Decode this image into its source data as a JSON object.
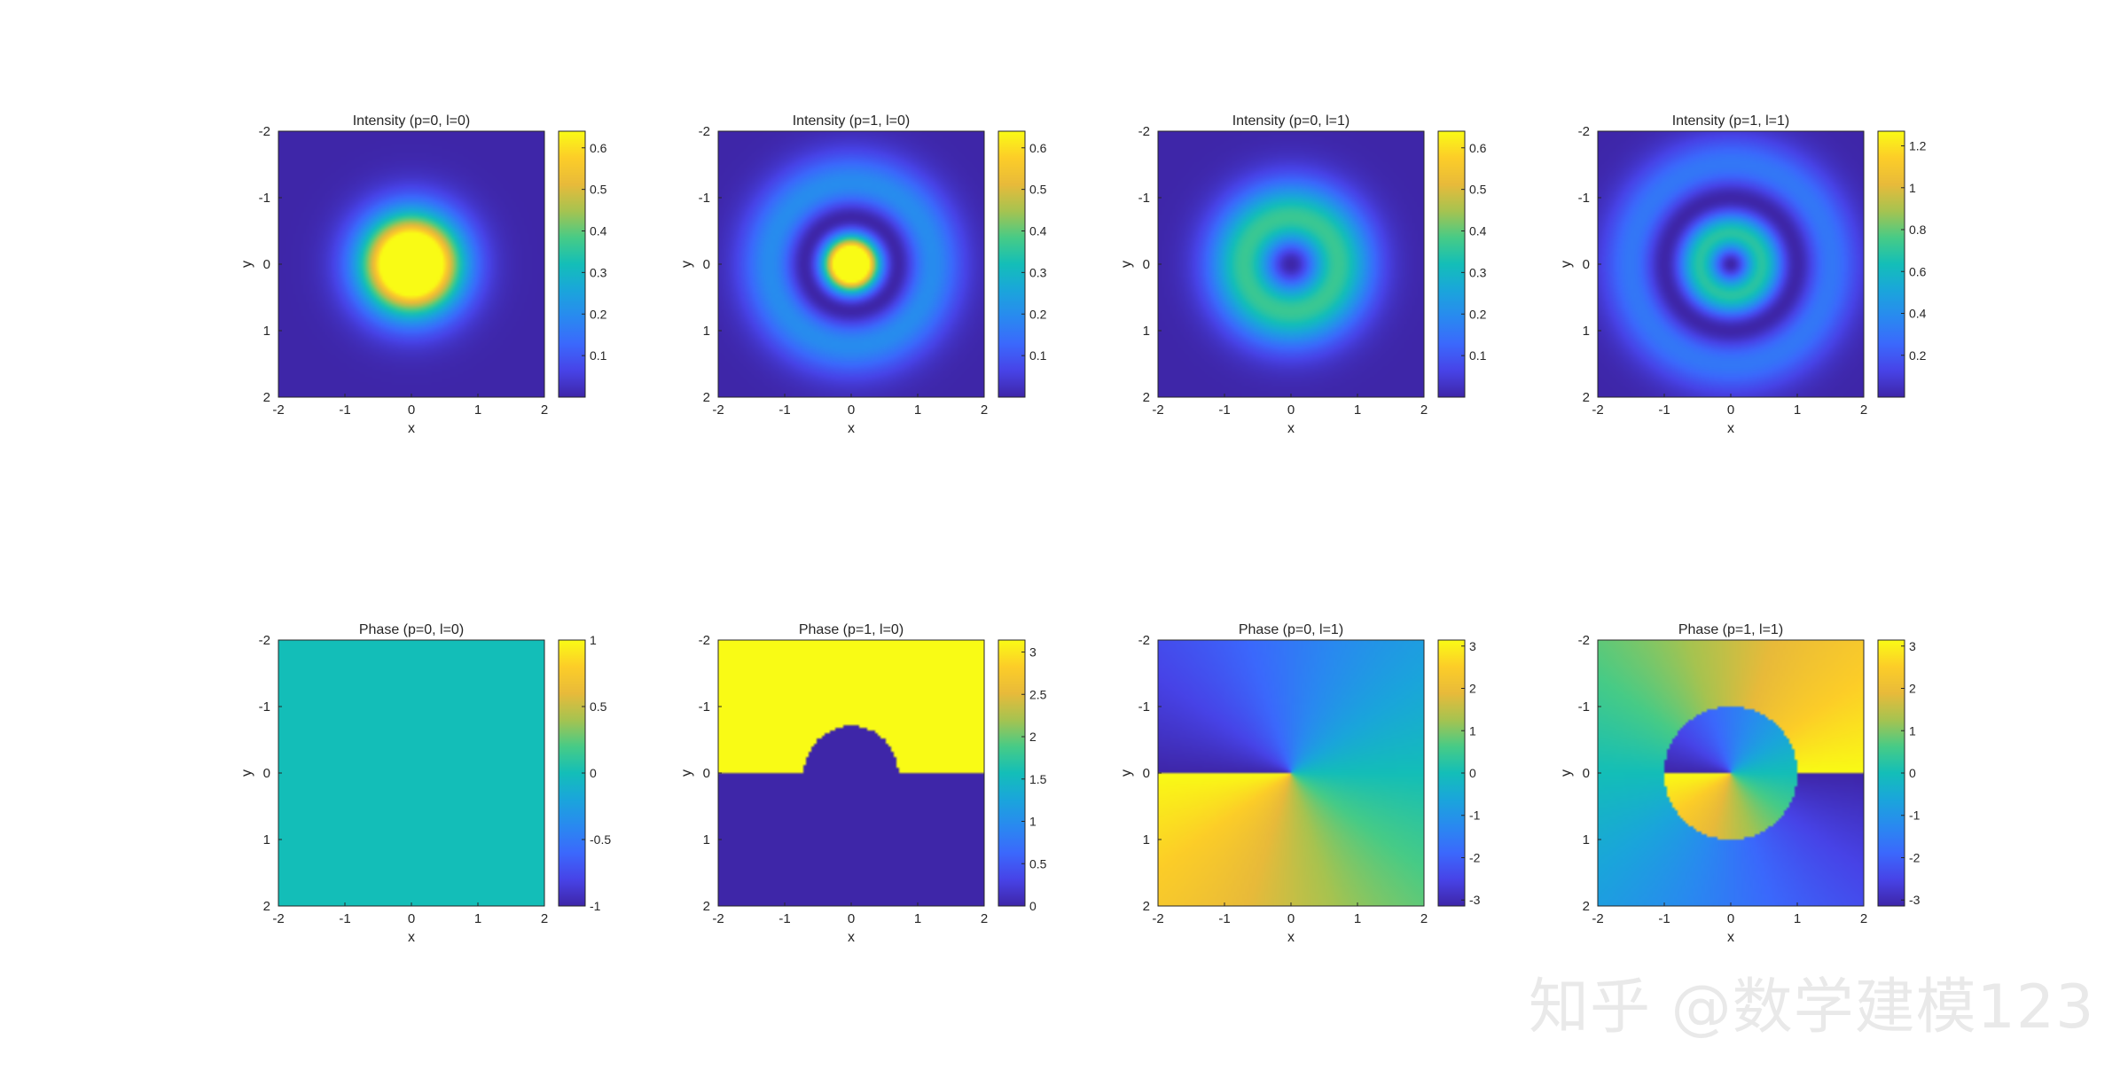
{
  "watermark": "知乎 @数学建模123",
  "colors": {
    "parula_low": "#3e26a8",
    "parula_mid": "#13beb8",
    "parula_high": "#f9fb15",
    "axis": "#262626"
  },
  "chart_data": [
    {
      "type": "heatmap",
      "title": "Intensity (p=0, l=0)",
      "xlabel": "x",
      "ylabel": "y",
      "xlim": [
        -2,
        2
      ],
      "ylim": [
        -2,
        2
      ],
      "y_direction": "reverse",
      "xticks": [
        "-2",
        "-1",
        "0",
        "1",
        "2"
      ],
      "yticks": [
        "-2",
        "-1",
        "0",
        "1",
        "2"
      ],
      "field": "intensity",
      "p": 0,
      "l": 0,
      "clim": [
        0,
        0.64
      ],
      "colorbar_ticks": [
        "0.1",
        "0.2",
        "0.3",
        "0.4",
        "0.5",
        "0.6"
      ]
    },
    {
      "type": "heatmap",
      "title": "Intensity (p=1, l=0)",
      "xlabel": "x",
      "ylabel": "y",
      "xlim": [
        -2,
        2
      ],
      "ylim": [
        -2,
        2
      ],
      "y_direction": "reverse",
      "xticks": [
        "-2",
        "-1",
        "0",
        "1",
        "2"
      ],
      "yticks": [
        "-2",
        "-1",
        "0",
        "1",
        "2"
      ],
      "field": "intensity",
      "p": 1,
      "l": 0,
      "clim": [
        0,
        0.64
      ],
      "colorbar_ticks": [
        "0.1",
        "0.2",
        "0.3",
        "0.4",
        "0.5",
        "0.6"
      ]
    },
    {
      "type": "heatmap",
      "title": "Intensity (p=0, l=1)",
      "xlabel": "x",
      "ylabel": "y",
      "xlim": [
        -2,
        2
      ],
      "ylim": [
        -2,
        2
      ],
      "y_direction": "reverse",
      "xticks": [
        "-2",
        "-1",
        "0",
        "1",
        "2"
      ],
      "yticks": [
        "-2",
        "-1",
        "0",
        "1",
        "2"
      ],
      "field": "intensity",
      "p": 0,
      "l": 1,
      "clim": [
        0,
        0.64
      ],
      "colorbar_ticks": [
        "0.1",
        "0.2",
        "0.3",
        "0.4",
        "0.5",
        "0.6"
      ]
    },
    {
      "type": "heatmap",
      "title": "Intensity (p=1, l=1)",
      "xlabel": "x",
      "ylabel": "y",
      "xlim": [
        -2,
        2
      ],
      "ylim": [
        -2,
        2
      ],
      "y_direction": "reverse",
      "xticks": [
        "-2",
        "-1",
        "0",
        "1",
        "2"
      ],
      "yticks": [
        "-2",
        "-1",
        "0",
        "1",
        "2"
      ],
      "field": "intensity",
      "p": 1,
      "l": 1,
      "clim": [
        0,
        1.27
      ],
      "colorbar_ticks": [
        "0.2",
        "0.4",
        "0.6",
        "0.8",
        "1",
        "1.2"
      ]
    },
    {
      "type": "heatmap",
      "title": "Phase (p=0, l=0)",
      "xlabel": "x",
      "ylabel": "y",
      "xlim": [
        -2,
        2
      ],
      "ylim": [
        -2,
        2
      ],
      "y_direction": "reverse",
      "xticks": [
        "-2",
        "-1",
        "0",
        "1",
        "2"
      ],
      "yticks": [
        "-2",
        "-1",
        "0",
        "1",
        "2"
      ],
      "field": "phase",
      "p": 0,
      "l": 0,
      "clim": [
        -1,
        1
      ],
      "colorbar_ticks": [
        "-1",
        "-0.5",
        "0",
        "0.5",
        "1"
      ]
    },
    {
      "type": "heatmap",
      "title": "Phase (p=1, l=0)",
      "xlabel": "x",
      "ylabel": "y",
      "xlim": [
        -2,
        2
      ],
      "ylim": [
        -2,
        2
      ],
      "y_direction": "reverse",
      "xticks": [
        "-2",
        "-1",
        "0",
        "1",
        "2"
      ],
      "yticks": [
        "-2",
        "-1",
        "0",
        "1",
        "2"
      ],
      "field": "phase",
      "p": 1,
      "l": 0,
      "clim": [
        0,
        3.1416
      ],
      "colorbar_ticks": [
        "0",
        "0.5",
        "1",
        "1.5",
        "2",
        "2.5",
        "3"
      ]
    },
    {
      "type": "heatmap",
      "title": "Phase (p=0, l=1)",
      "xlabel": "x",
      "ylabel": "y",
      "xlim": [
        -2,
        2
      ],
      "ylim": [
        -2,
        2
      ],
      "y_direction": "reverse",
      "xticks": [
        "-2",
        "-1",
        "0",
        "1",
        "2"
      ],
      "yticks": [
        "-2",
        "-1",
        "0",
        "1",
        "2"
      ],
      "field": "phase",
      "p": 0,
      "l": 1,
      "clim": [
        -3.1416,
        3.1416
      ],
      "colorbar_ticks": [
        "-3",
        "-2",
        "-1",
        "0",
        "1",
        "2",
        "3"
      ]
    },
    {
      "type": "heatmap",
      "title": "Phase (p=1, l=1)",
      "xlabel": "x",
      "ylabel": "y",
      "xlim": [
        -2,
        2
      ],
      "ylim": [
        -2,
        2
      ],
      "y_direction": "reverse",
      "xticks": [
        "-2",
        "-1",
        "0",
        "1",
        "2"
      ],
      "yticks": [
        "-2",
        "-1",
        "0",
        "1",
        "2"
      ],
      "field": "phase",
      "p": 1,
      "l": 1,
      "clim": [
        -3.1416,
        3.1416
      ],
      "colorbar_ticks": [
        "-3",
        "-2",
        "-1",
        "0",
        "1",
        "2",
        "3"
      ]
    }
  ]
}
